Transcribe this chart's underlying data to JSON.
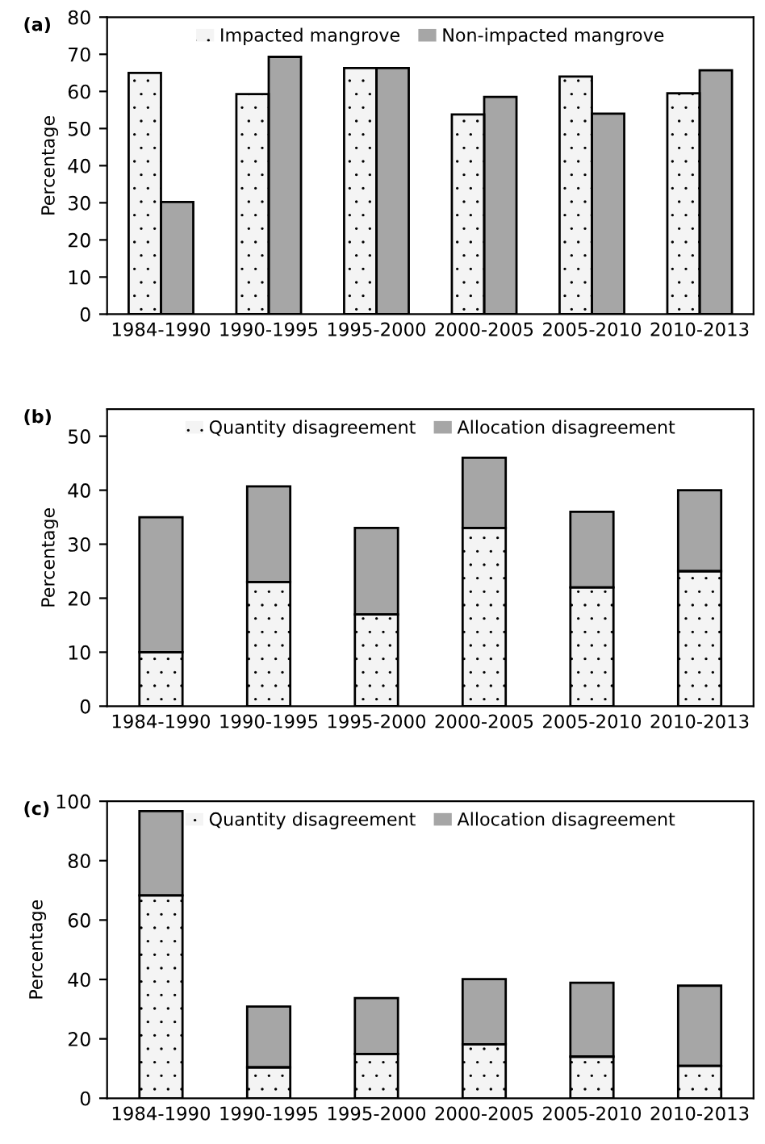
{
  "chart_data": [
    {
      "type": "bar",
      "title": "(a)",
      "ylabel": "Percentage",
      "categories": [
        "1984-1990",
        "1990-1995",
        "1995-2000",
        "2000-2005",
        "2005-2010",
        "2010-2013"
      ],
      "series": [
        {
          "name": "Impacted mangrove",
          "color": "#f4f4f4",
          "values": [
            65,
            59.3,
            66.3,
            53.8,
            64,
            59.5
          ]
        },
        {
          "name": "Non-impacted mangrove",
          "color": "#a6a6a6",
          "values": [
            30.2,
            69.3,
            66.3,
            58.5,
            54,
            65.7
          ]
        }
      ],
      "ylim": [
        0,
        80
      ],
      "yticks": [
        0,
        10,
        20,
        30,
        40,
        50,
        60,
        70,
        80
      ],
      "legend": "top",
      "grid": false
    },
    {
      "type": "bar",
      "title": "(b)",
      "ylabel": "Percentage",
      "stacked": true,
      "categories": [
        "1984-1990",
        "1990-1995",
        "1995-2000",
        "2000-2005",
        "2005-2010",
        "2010-2013"
      ],
      "series": [
        {
          "name": "Quantity disagreement",
          "color": "#f4f4f4",
          "values": [
            10,
            23,
            17,
            33,
            22,
            25
          ]
        },
        {
          "name": "Allocation disagreement",
          "color": "#a6a6a6",
          "values": [
            25,
            17.7,
            16,
            13,
            14,
            15
          ]
        }
      ],
      "ylim": [
        0,
        55
      ],
      "yticks": [
        0,
        10,
        20,
        30,
        40,
        50
      ],
      "legend": "top",
      "grid": false
    },
    {
      "type": "bar",
      "title": "(c)",
      "ylabel": "Percentage",
      "stacked": true,
      "categories": [
        "1984-1990",
        "1990-1995",
        "1995-2000",
        "2000-2005",
        "2005-2010",
        "2010-2013"
      ],
      "series": [
        {
          "name": "Quantity disagreement",
          "color": "#f4f4f4",
          "values": [
            68.3,
            10.4,
            14.9,
            18.2,
            14,
            10.9
          ]
        },
        {
          "name": "Allocation disagreement",
          "color": "#a6a6a6",
          "values": [
            28.4,
            20.5,
            18.8,
            21.9,
            24.9,
            27
          ]
        }
      ],
      "ylim": [
        0,
        100
      ],
      "yticks": [
        0,
        20,
        40,
        60,
        80,
        100
      ],
      "legend": "top",
      "grid": false
    }
  ]
}
